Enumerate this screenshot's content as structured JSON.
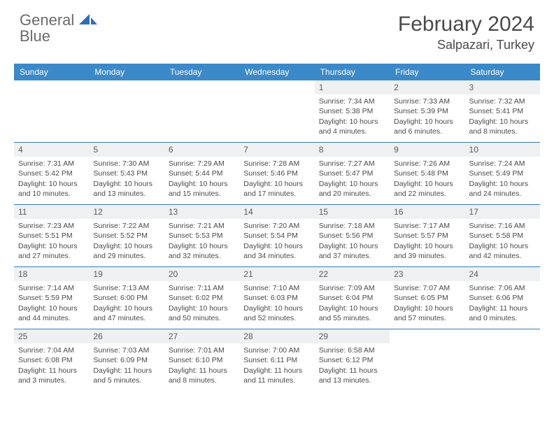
{
  "logo": {
    "text1": "General",
    "text2": "Blue",
    "shape_color": "#2f6fb0"
  },
  "header": {
    "month_title": "February 2024",
    "location": "Salpazari, Turkey"
  },
  "colors": {
    "header_bg": "#3b89c9",
    "header_text": "#ffffff",
    "week_border": "#3b7bbf",
    "daynum_bg": "#eef0f2",
    "body_text": "#4a4a4a"
  },
  "day_names": [
    "Sunday",
    "Monday",
    "Tuesday",
    "Wednesday",
    "Thursday",
    "Friday",
    "Saturday"
  ],
  "days": [
    {
      "n": "",
      "empty": true
    },
    {
      "n": "",
      "empty": true
    },
    {
      "n": "",
      "empty": true
    },
    {
      "n": "",
      "empty": true
    },
    {
      "n": "1",
      "sunrise": "7:34 AM",
      "sunset": "5:38 PM",
      "daylight": "10 hours and 4 minutes."
    },
    {
      "n": "2",
      "sunrise": "7:33 AM",
      "sunset": "5:39 PM",
      "daylight": "10 hours and 6 minutes."
    },
    {
      "n": "3",
      "sunrise": "7:32 AM",
      "sunset": "5:41 PM",
      "daylight": "10 hours and 8 minutes."
    },
    {
      "n": "4",
      "sunrise": "7:31 AM",
      "sunset": "5:42 PM",
      "daylight": "10 hours and 10 minutes."
    },
    {
      "n": "5",
      "sunrise": "7:30 AM",
      "sunset": "5:43 PM",
      "daylight": "10 hours and 13 minutes."
    },
    {
      "n": "6",
      "sunrise": "7:29 AM",
      "sunset": "5:44 PM",
      "daylight": "10 hours and 15 minutes."
    },
    {
      "n": "7",
      "sunrise": "7:28 AM",
      "sunset": "5:46 PM",
      "daylight": "10 hours and 17 minutes."
    },
    {
      "n": "8",
      "sunrise": "7:27 AM",
      "sunset": "5:47 PM",
      "daylight": "10 hours and 20 minutes."
    },
    {
      "n": "9",
      "sunrise": "7:26 AM",
      "sunset": "5:48 PM",
      "daylight": "10 hours and 22 minutes."
    },
    {
      "n": "10",
      "sunrise": "7:24 AM",
      "sunset": "5:49 PM",
      "daylight": "10 hours and 24 minutes."
    },
    {
      "n": "11",
      "sunrise": "7:23 AM",
      "sunset": "5:51 PM",
      "daylight": "10 hours and 27 minutes."
    },
    {
      "n": "12",
      "sunrise": "7:22 AM",
      "sunset": "5:52 PM",
      "daylight": "10 hours and 29 minutes."
    },
    {
      "n": "13",
      "sunrise": "7:21 AM",
      "sunset": "5:53 PM",
      "daylight": "10 hours and 32 minutes."
    },
    {
      "n": "14",
      "sunrise": "7:20 AM",
      "sunset": "5:54 PM",
      "daylight": "10 hours and 34 minutes."
    },
    {
      "n": "15",
      "sunrise": "7:18 AM",
      "sunset": "5:56 PM",
      "daylight": "10 hours and 37 minutes."
    },
    {
      "n": "16",
      "sunrise": "7:17 AM",
      "sunset": "5:57 PM",
      "daylight": "10 hours and 39 minutes."
    },
    {
      "n": "17",
      "sunrise": "7:16 AM",
      "sunset": "5:58 PM",
      "daylight": "10 hours and 42 minutes."
    },
    {
      "n": "18",
      "sunrise": "7:14 AM",
      "sunset": "5:59 PM",
      "daylight": "10 hours and 44 minutes."
    },
    {
      "n": "19",
      "sunrise": "7:13 AM",
      "sunset": "6:00 PM",
      "daylight": "10 hours and 47 minutes."
    },
    {
      "n": "20",
      "sunrise": "7:11 AM",
      "sunset": "6:02 PM",
      "daylight": "10 hours and 50 minutes."
    },
    {
      "n": "21",
      "sunrise": "7:10 AM",
      "sunset": "6:03 PM",
      "daylight": "10 hours and 52 minutes."
    },
    {
      "n": "22",
      "sunrise": "7:09 AM",
      "sunset": "6:04 PM",
      "daylight": "10 hours and 55 minutes."
    },
    {
      "n": "23",
      "sunrise": "7:07 AM",
      "sunset": "6:05 PM",
      "daylight": "10 hours and 57 minutes."
    },
    {
      "n": "24",
      "sunrise": "7:06 AM",
      "sunset": "6:06 PM",
      "daylight": "11 hours and 0 minutes."
    },
    {
      "n": "25",
      "sunrise": "7:04 AM",
      "sunset": "6:08 PM",
      "daylight": "11 hours and 3 minutes."
    },
    {
      "n": "26",
      "sunrise": "7:03 AM",
      "sunset": "6:09 PM",
      "daylight": "11 hours and 5 minutes."
    },
    {
      "n": "27",
      "sunrise": "7:01 AM",
      "sunset": "6:10 PM",
      "daylight": "11 hours and 8 minutes."
    },
    {
      "n": "28",
      "sunrise": "7:00 AM",
      "sunset": "6:11 PM",
      "daylight": "11 hours and 11 minutes."
    },
    {
      "n": "29",
      "sunrise": "6:58 AM",
      "sunset": "6:12 PM",
      "daylight": "11 hours and 13 minutes."
    },
    {
      "n": "",
      "empty": true
    },
    {
      "n": "",
      "empty": true
    }
  ],
  "labels": {
    "sunrise": "Sunrise:",
    "sunset": "Sunset:",
    "daylight": "Daylight:"
  }
}
